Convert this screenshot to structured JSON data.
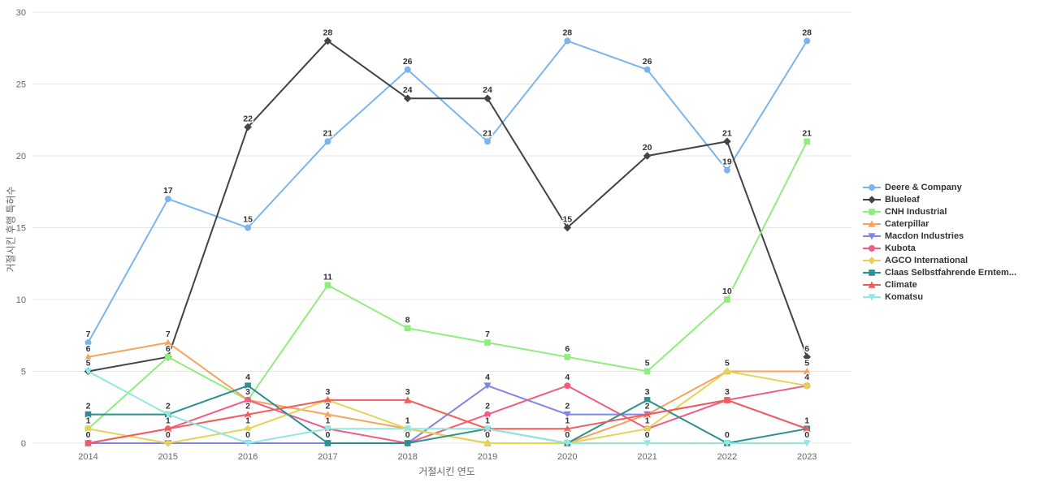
{
  "chart_data": {
    "type": "line",
    "x": [
      2014,
      2015,
      2016,
      2017,
      2018,
      2019,
      2020,
      2021,
      2022,
      2023
    ],
    "xlabel": "거절시킨 연도",
    "ylabel": "거절시킨 후행 특허수",
    "ylim": [
      0,
      30
    ],
    "yticks": [
      0,
      5,
      10,
      15,
      20,
      25,
      30
    ],
    "grid": true,
    "legend_position": "right",
    "series": [
      {
        "name": "Deere & Company",
        "color": "#7cb5ec",
        "marker": "circle",
        "values": [
          7,
          17,
          15,
          21,
          26,
          21,
          28,
          26,
          19,
          28
        ]
      },
      {
        "name": "Blueleaf",
        "color": "#434348",
        "marker": "diamond",
        "values": [
          5,
          6,
          22,
          28,
          24,
          24,
          15,
          20,
          21,
          6
        ]
      },
      {
        "name": "CNH Industrial",
        "color": "#90ed7d",
        "marker": "square",
        "values": [
          1,
          6,
          3,
          11,
          8,
          7,
          6,
          5,
          10,
          21
        ]
      },
      {
        "name": "Caterpillar",
        "color": "#f7a35c",
        "marker": "triangle",
        "values": [
          6,
          7,
          3,
          2,
          1,
          0,
          0,
          2,
          5,
          5
        ]
      },
      {
        "name": "Macdon Industries",
        "color": "#8085e9",
        "marker": "triangle-down",
        "values": [
          0,
          0,
          0,
          0,
          0,
          4,
          2,
          2,
          3,
          1
        ]
      },
      {
        "name": "Kubota",
        "color": "#f15c80",
        "marker": "circle",
        "values": [
          0,
          1,
          3,
          1,
          0,
          2,
          4,
          1,
          3,
          4
        ]
      },
      {
        "name": "AGCO International",
        "color": "#e4d354",
        "marker": "diamond",
        "values": [
          1,
          0,
          1,
          3,
          1,
          0,
          0,
          1,
          5,
          4
        ]
      },
      {
        "name": "Claas Selbstfahrende Erntem...",
        "color": "#2b908f",
        "marker": "square",
        "values": [
          2,
          2,
          4,
          0,
          0,
          1,
          0,
          3,
          0,
          1
        ]
      },
      {
        "name": "Climate",
        "color": "#f45b5b",
        "marker": "triangle",
        "values": [
          0,
          1,
          2,
          3,
          3,
          1,
          1,
          2,
          3,
          1
        ]
      },
      {
        "name": "Komatsu",
        "color": "#91e8e1",
        "marker": "triangle-down",
        "values": [
          5,
          2,
          0,
          1,
          1,
          1,
          0,
          0,
          0,
          0
        ]
      }
    ]
  },
  "colors": {
    "grid": "#e6e6e6",
    "tick_label": "#666666",
    "data_label": "#333333",
    "legend_label": "#333333"
  }
}
